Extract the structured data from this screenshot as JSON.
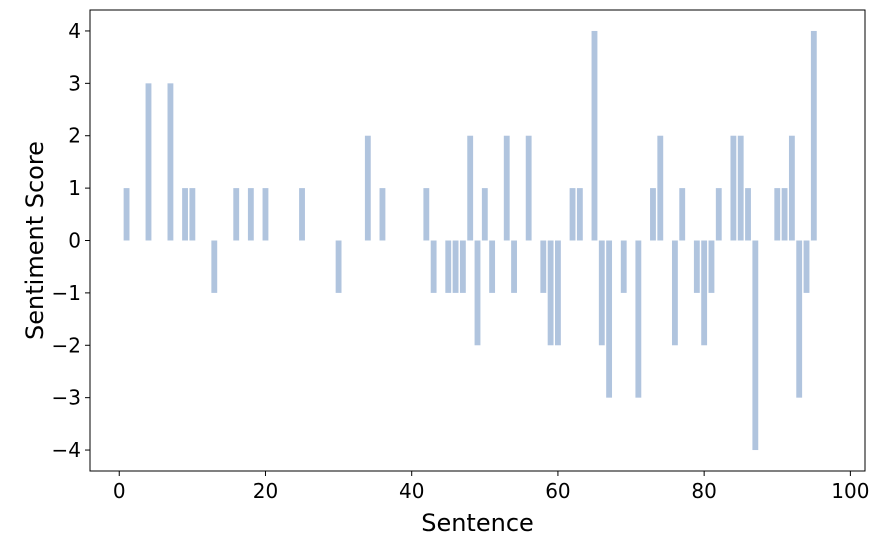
{
  "chart_data": {
    "type": "bar",
    "title": "",
    "xlabel": "Sentence",
    "ylabel": "Sentiment Score",
    "xlim": [
      -4,
      102
    ],
    "ylim": [
      -4.4,
      4.4
    ],
    "xticks": [
      0,
      20,
      40,
      60,
      80,
      100
    ],
    "yticks": [
      -4,
      -3,
      -2,
      -1,
      0,
      1,
      2,
      3,
      4
    ],
    "ytick_labels": [
      "−4",
      "−3",
      "−2",
      "−1",
      "0",
      "1",
      "2",
      "3",
      "4"
    ],
    "bar_color": "#b0c4de",
    "grid": false,
    "x": [
      1,
      4,
      7,
      9,
      10,
      13,
      16,
      18,
      20,
      25,
      30,
      34,
      36,
      42,
      43,
      45,
      46,
      47,
      48,
      49,
      50,
      51,
      53,
      54,
      56,
      58,
      59,
      60,
      62,
      63,
      65,
      66,
      67,
      69,
      71,
      73,
      74,
      76,
      77,
      79,
      80,
      81,
      82,
      84,
      85,
      86,
      87,
      90,
      91,
      92,
      93,
      94,
      95
    ],
    "values": [
      1,
      3,
      3,
      1,
      1,
      -1,
      1,
      1,
      1,
      1,
      -1,
      2,
      1,
      1,
      -1,
      -1,
      -1,
      -1,
      2,
      -2,
      1,
      -1,
      2,
      -1,
      2,
      -1,
      -2,
      -2,
      1,
      1,
      4,
      -2,
      -3,
      -1,
      -3,
      1,
      2,
      -2,
      1,
      -1,
      -2,
      -1,
      1,
      2,
      2,
      1,
      -4,
      1,
      1,
      2,
      -3,
      -1,
      4
    ]
  }
}
